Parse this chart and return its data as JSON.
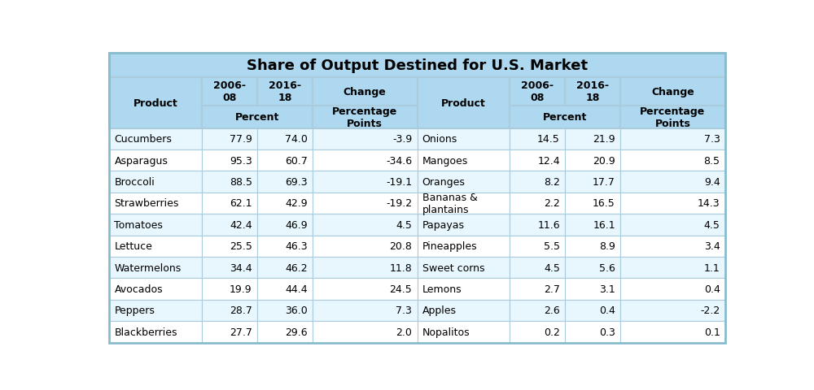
{
  "title": "Share of Output Destined for U.S. Market",
  "header_bg": "#ADD8F0",
  "title_bg": "#ADD8F0",
  "row_bg_light": "#E8F6FD",
  "row_bg_white": "#FFFFFF",
  "border_color": "#AACCDD",
  "header_text_color": "#000000",
  "cell_text_color": "#000000",
  "left_data": [
    [
      "Cucumbers",
      "77.9",
      "74.0",
      "-3.9"
    ],
    [
      "Asparagus",
      "95.3",
      "60.7",
      "-34.6"
    ],
    [
      "Broccoli",
      "88.5",
      "69.3",
      "-19.1"
    ],
    [
      "Strawberries",
      "62.1",
      "42.9",
      "-19.2"
    ],
    [
      "Tomatoes",
      "42.4",
      "46.9",
      "4.5"
    ],
    [
      "Lettuce",
      "25.5",
      "46.3",
      "20.8"
    ],
    [
      "Watermelons",
      "34.4",
      "46.2",
      "11.8"
    ],
    [
      "Avocados",
      "19.9",
      "44.4",
      "24.5"
    ],
    [
      "Peppers",
      "28.7",
      "36.0",
      "7.3"
    ],
    [
      "Blackberries",
      "27.7",
      "29.6",
      "2.0"
    ]
  ],
  "right_data": [
    [
      "Onions",
      "14.5",
      "21.9",
      "7.3"
    ],
    [
      "Mangoes",
      "12.4",
      "20.9",
      "8.5"
    ],
    [
      "Oranges",
      "8.2",
      "17.7",
      "9.4"
    ],
    [
      "Bananas &\nplantains",
      "2.2",
      "16.5",
      "14.3"
    ],
    [
      "Papayas",
      "11.6",
      "16.1",
      "4.5"
    ],
    [
      "Pineapples",
      "5.5",
      "8.9",
      "3.4"
    ],
    [
      "Sweet corns",
      "4.5",
      "5.6",
      "1.1"
    ],
    [
      "Lemons",
      "2.7",
      "3.1",
      "0.4"
    ],
    [
      "Apples",
      "2.6",
      "0.4",
      "-2.2"
    ],
    [
      "Nopalitos",
      "0.2",
      "0.3",
      "0.1"
    ]
  ]
}
